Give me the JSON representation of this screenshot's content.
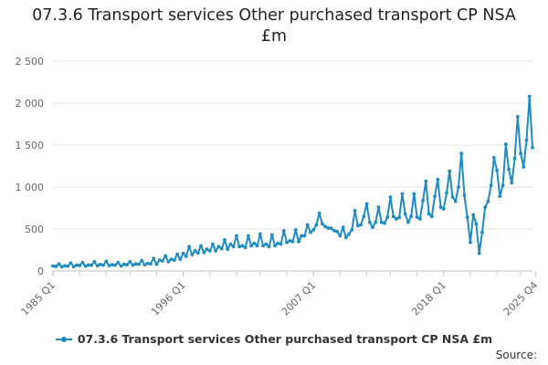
{
  "chart_data": {
    "type": "line",
    "title": "07.3.6 Transport services Other purchased transport CP NSA £m",
    "xlabel": "",
    "ylabel": "",
    "ylim": [
      0,
      2500
    ],
    "yticks": [
      0,
      500,
      1000,
      1500,
      2000,
      2500
    ],
    "ytick_labels": [
      "0",
      "500",
      "1 000",
      "1 500",
      "2 000",
      "2 500"
    ],
    "xtick_labels": [
      {
        "label": "1985 Q1",
        "index": 0
      },
      {
        "label": "1996 Q1",
        "index": 44
      },
      {
        "label": "2007 Q1",
        "index": 88
      },
      {
        "label": "2018 Q1",
        "index": 132
      },
      {
        "label": "2025 Q4",
        "index": 163
      }
    ],
    "minor_tick_indices": [
      9,
      18,
      26,
      35,
      53,
      62,
      70,
      79,
      97,
      106,
      114,
      123,
      141,
      150,
      158
    ],
    "gridlines": true,
    "legend_position": "bottom",
    "series": [
      {
        "name": "07.3.6 Transport services Other purchased transport CP NSA £m",
        "color": "#1f8bc1",
        "x_start": "1985 Q1",
        "values": [
          60,
          55,
          85,
          50,
          62,
          58,
          95,
          52,
          70,
          65,
          100,
          58,
          72,
          68,
          110,
          62,
          78,
          70,
          115,
          65,
          75,
          70,
          100,
          60,
          80,
          75,
          110,
          70,
          85,
          80,
          125,
          75,
          90,
          85,
          150,
          80,
          130,
          120,
          180,
          110,
          140,
          130,
          200,
          140,
          210,
          175,
          290,
          195,
          240,
          215,
          300,
          220,
          260,
          240,
          320,
          240,
          290,
          265,
          370,
          260,
          320,
          290,
          420,
          290,
          300,
          280,
          420,
          300,
          330,
          300,
          440,
          300,
          320,
          290,
          430,
          300,
          330,
          320,
          480,
          340,
          360,
          350,
          490,
          350,
          420,
          420,
          550,
          460,
          490,
          550,
          690,
          560,
          530,
          510,
          510,
          480,
          470,
          420,
          520,
          400,
          440,
          490,
          720,
          540,
          550,
          650,
          800,
          580,
          520,
          580,
          760,
          580,
          570,
          640,
          880,
          650,
          620,
          640,
          920,
          680,
          580,
          650,
          920,
          640,
          620,
          840,
          1070,
          680,
          650,
          890,
          1090,
          760,
          740,
          930,
          1190,
          880,
          830,
          1000,
          1400,
          900,
          640,
          340,
          670,
          560,
          210,
          460,
          760,
          830,
          1020,
          1350,
          1200,
          890,
          1020,
          1510,
          1210,
          1050,
          1340,
          1840,
          1400,
          1240,
          1560,
          2080,
          1470
        ]
      }
    ]
  },
  "legend": {
    "label": "07.3.6 Transport services Other purchased transport CP NSA £m"
  },
  "source_label": "Source:"
}
